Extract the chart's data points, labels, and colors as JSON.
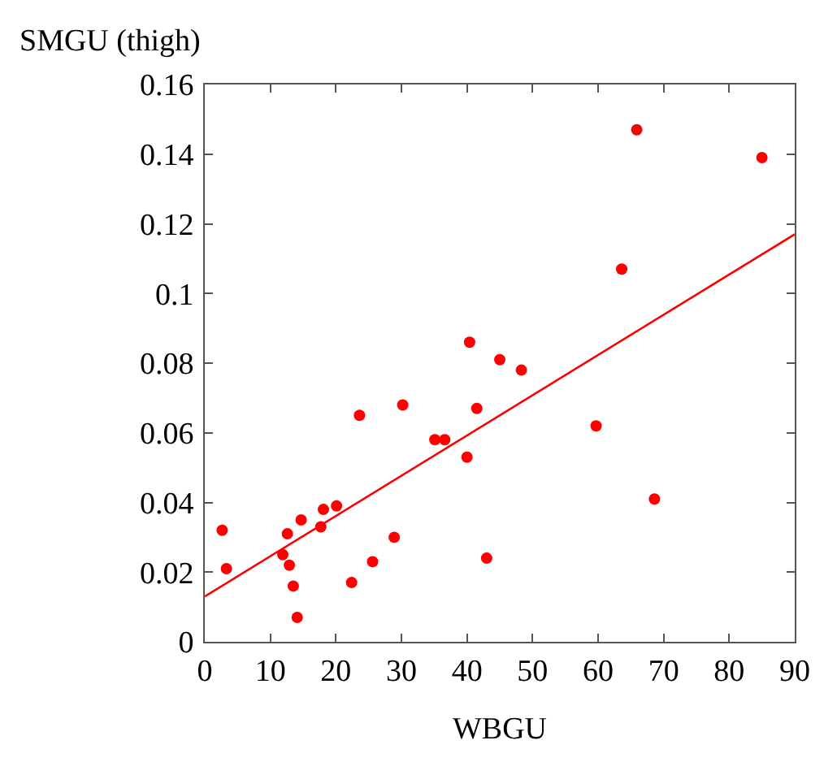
{
  "chart_data": {
    "type": "scatter",
    "ylabel": "SMGU (thigh)",
    "xlabel": "WBGU",
    "xlim": [
      0,
      90
    ],
    "ylim": [
      0,
      0.16
    ],
    "xticks": [
      0,
      10,
      20,
      30,
      40,
      50,
      60,
      70,
      80,
      90
    ],
    "yticks": [
      0,
      0.02,
      0.04,
      0.06,
      0.08,
      0.1,
      0.12,
      0.14,
      0.16
    ],
    "grid": false,
    "legend": false,
    "series": [
      {
        "marker": "circle",
        "color": "#ff0000",
        "x": [
          2.65,
          3.3,
          11.9,
          12.6,
          12.9,
          13.5,
          14.1,
          14.7,
          17.7,
          18.1,
          20.1,
          22.4,
          23.6,
          25.6,
          28.9,
          30.2,
          35.1,
          36.6,
          40,
          41.5,
          43,
          45,
          48.3,
          59.7,
          68.6,
          40.4,
          63.6,
          65.9,
          85
        ],
        "values": [
          0.032,
          0.021,
          0.025,
          0.031,
          0.022,
          0.016,
          0.007,
          0.035,
          0.033,
          0.038,
          0.039,
          0.017,
          0.065,
          0.023,
          0.03,
          0.068,
          0.058,
          0.058,
          0.053,
          0.067,
          0.024,
          0.081,
          0.078,
          0.062,
          0.041,
          0.086,
          0.107,
          0.147,
          0.139
        ]
      },
      {
        "type": "line",
        "color": "#ff0000",
        "x": [
          0,
          90
        ],
        "values": [
          0.013,
          0.117
        ]
      }
    ]
  }
}
